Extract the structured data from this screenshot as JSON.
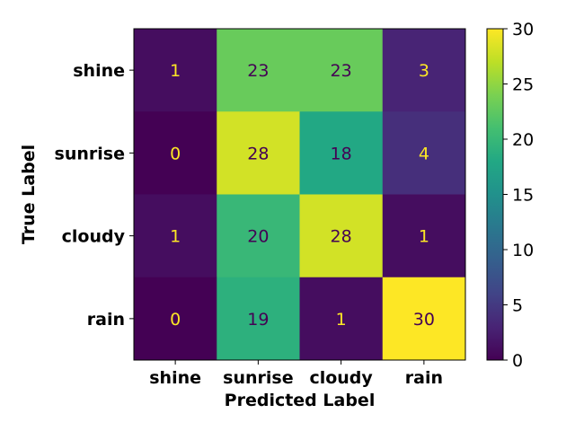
{
  "chart_data": {
    "type": "heatmap",
    "title": "",
    "xlabel": "Predicted Label",
    "ylabel": "True Label",
    "x_categories": [
      "shine",
      "sunrise",
      "cloudy",
      "rain"
    ],
    "y_categories": [
      "shine",
      "sunrise",
      "cloudy",
      "rain"
    ],
    "values": [
      [
        1,
        23,
        23,
        3
      ],
      [
        0,
        28,
        18,
        4
      ],
      [
        1,
        20,
        28,
        1
      ],
      [
        0,
        19,
        1,
        30
      ]
    ],
    "colorbar": {
      "min": 0,
      "max": 30,
      "ticks": [
        "0",
        "5",
        "10",
        "15",
        "20",
        "25",
        "30"
      ],
      "colormap": "viridis"
    },
    "grid": false
  }
}
